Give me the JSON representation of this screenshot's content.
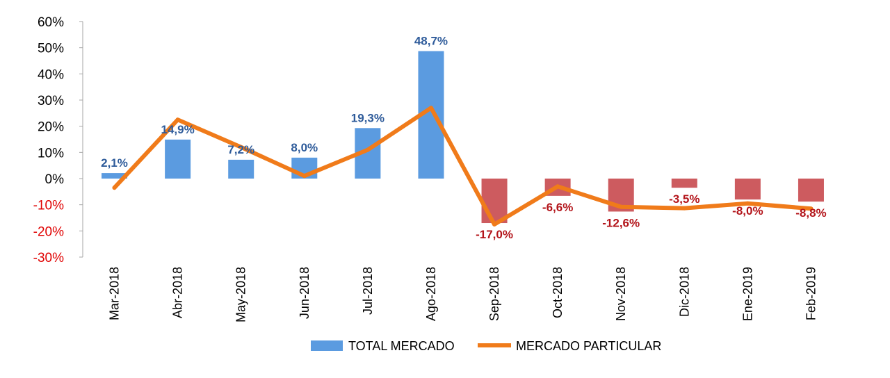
{
  "chart_data": {
    "type": "bar",
    "categories": [
      "Mar-2018",
      "Abr-2018",
      "May-2018",
      "Jun-2018",
      "Jul-2018",
      "Ago-2018",
      "Sep-2018",
      "Oct-2018",
      "Nov-2018",
      "Dic-2018",
      "Ene-2019",
      "Feb-2019"
    ],
    "series": [
      {
        "name": "TOTAL MERCADO",
        "type": "bar",
        "values": [
          2.1,
          14.9,
          7.2,
          8.0,
          19.3,
          48.7,
          -17.0,
          -6.6,
          -12.6,
          -3.5,
          -8.0,
          -8.8
        ],
        "labels": [
          "2,1%",
          "14,9%",
          "7,2%",
          "8,0%",
          "19,3%",
          "48,7%",
          "-17,0%",
          "-6,6%",
          "-12,6%",
          "-3,5%",
          "-8,0%",
          "-8,8%"
        ]
      },
      {
        "name": "MERCADO PARTICULAR",
        "type": "line",
        "values": [
          -3.5,
          22.5,
          12.0,
          1.0,
          11.0,
          27.0,
          -17.5,
          -3.0,
          -10.8,
          -11.3,
          -9.5,
          -11.5
        ]
      }
    ],
    "y_ticks": [
      {
        "value": 60,
        "label": "60%"
      },
      {
        "value": 50,
        "label": "50%"
      },
      {
        "value": 40,
        "label": "40%"
      },
      {
        "value": 30,
        "label": "30%"
      },
      {
        "value": 20,
        "label": "20%"
      },
      {
        "value": 10,
        "label": "10%"
      },
      {
        "value": 0,
        "label": "0%"
      },
      {
        "value": -10,
        "label": "-10%"
      },
      {
        "value": -20,
        "label": "-20%"
      },
      {
        "value": -30,
        "label": "-30%"
      }
    ],
    "ylim": [
      -30,
      60
    ],
    "title": "",
    "xlabel": "",
    "ylabel": "",
    "legend_position": "bottom",
    "colors": {
      "bar_positive": "#5b9be0",
      "bar_negative": "#cd5b5f",
      "label_positive": "#2e5b9a",
      "label_negative": "#b3141a",
      "line": "#f07b1a",
      "tick_positive": "#000000",
      "tick_negative": "#e00000",
      "axis": "#a6a6a6"
    }
  }
}
